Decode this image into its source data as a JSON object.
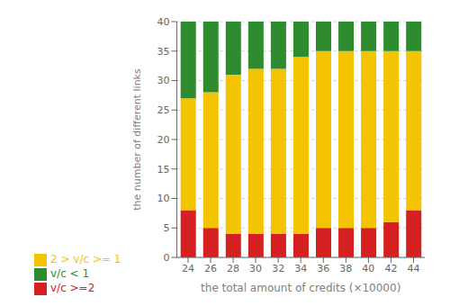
{
  "chart_data": {
    "type": "bar",
    "stacked": true,
    "categories": [
      "24",
      "26",
      "28",
      "30",
      "32",
      "34",
      "36",
      "38",
      "40",
      "42",
      "44"
    ],
    "series": [
      {
        "name": "v/c >=2",
        "color": "#d42020",
        "values": [
          8,
          5,
          4,
          4,
          4,
          4,
          5,
          5,
          5,
          6,
          8
        ]
      },
      {
        "name": "2 > v/c >= 1",
        "color": "#f5c400",
        "values": [
          19,
          23,
          27,
          28,
          28,
          30,
          30,
          30,
          30,
          29,
          27
        ]
      },
      {
        "name": "v/c < 1",
        "color": "#2e8b2e",
        "values": [
          13,
          12,
          9,
          8,
          8,
          6,
          5,
          5,
          5,
          5,
          5
        ]
      }
    ],
    "xlabel": "the total amount of credits (×10000)",
    "ylabel": "the number of different links",
    "ylim": [
      0,
      40
    ],
    "yticks": [
      0,
      5,
      10,
      15,
      20,
      25,
      30,
      35,
      40
    ],
    "grid": true,
    "legend": "lower left"
  }
}
